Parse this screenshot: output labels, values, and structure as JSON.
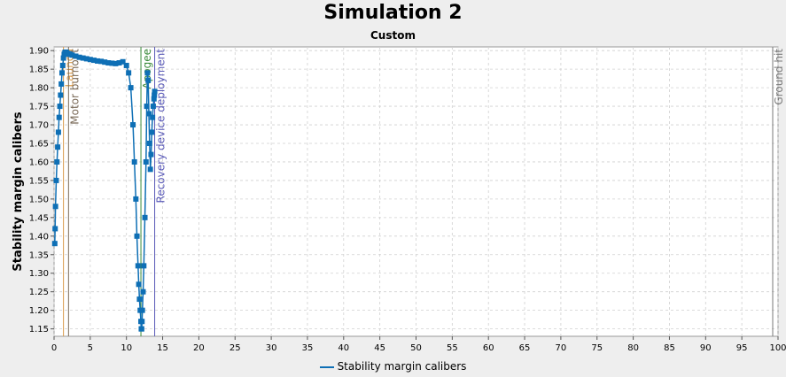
{
  "chart_data": {
    "type": "line",
    "title": "Simulation 2",
    "subtitle": "Custom",
    "xlabel": "",
    "ylabel": "Stability margin calibers",
    "xlim": [
      0,
      100
    ],
    "ylim": [
      1.13,
      1.91
    ],
    "x_ticks": [
      0,
      5,
      10,
      15,
      20,
      25,
      30,
      35,
      40,
      45,
      50,
      55,
      60,
      65,
      70,
      75,
      80,
      85,
      90,
      95,
      100
    ],
    "y_ticks": [
      1.15,
      1.2,
      1.25,
      1.3,
      1.35,
      1.4,
      1.45,
      1.5,
      1.55,
      1.6,
      1.65,
      1.7,
      1.75,
      1.8,
      1.85,
      1.9
    ],
    "grid": true,
    "legend_position": "bottom",
    "colors": {
      "series": "#0e6fb5",
      "background": "#ffffff",
      "grid": "#d0d0d0"
    },
    "series": [
      {
        "name": "Stability margin calibers",
        "x": [
          0.1,
          0.15,
          0.2,
          0.3,
          0.4,
          0.5,
          0.6,
          0.7,
          0.8,
          0.9,
          1.0,
          1.1,
          1.2,
          1.3,
          1.4,
          1.5,
          1.6,
          1.7,
          1.8,
          1.9,
          2.0,
          2.2,
          2.5,
          3.0,
          3.5,
          4.0,
          4.5,
          5.0,
          5.5,
          6.0,
          6.5,
          7.0,
          7.5,
          8.0,
          8.5,
          9.0,
          9.5,
          10.0,
          10.3,
          10.6,
          10.9,
          11.1,
          11.3,
          11.45,
          11.6,
          11.7,
          11.8,
          11.9,
          12.0,
          12.05,
          12.1,
          12.15,
          12.2,
          12.3,
          12.4,
          12.55,
          12.7,
          12.8,
          12.9,
          13.0,
          13.1,
          13.2,
          13.3,
          13.4,
          13.5,
          13.6,
          13.7,
          13.8,
          13.85,
          13.9
        ],
        "y": [
          1.38,
          1.42,
          1.48,
          1.55,
          1.6,
          1.64,
          1.68,
          1.72,
          1.75,
          1.78,
          1.81,
          1.84,
          1.86,
          1.88,
          1.89,
          1.895,
          1.896,
          1.895,
          1.893,
          1.892,
          1.891,
          1.89,
          1.888,
          1.885,
          1.882,
          1.88,
          1.878,
          1.876,
          1.874,
          1.872,
          1.871,
          1.869,
          1.867,
          1.866,
          1.865,
          1.867,
          1.87,
          1.86,
          1.84,
          1.8,
          1.7,
          1.6,
          1.5,
          1.4,
          1.32,
          1.27,
          1.23,
          1.2,
          1.17,
          1.15,
          1.15,
          1.17,
          1.2,
          1.25,
          1.32,
          1.45,
          1.6,
          1.75,
          1.84,
          1.82,
          1.73,
          1.65,
          1.58,
          1.62,
          1.68,
          1.72,
          1.75,
          1.77,
          1.78,
          1.79
        ]
      }
    ],
    "events": [
      {
        "label": "Launch",
        "x": 1.3,
        "color": "#d99a4a"
      },
      {
        "label": "Motor burnout",
        "x": 2.0,
        "color": "#7a6a58"
      },
      {
        "label": "Apogee",
        "x": 12.0,
        "color": "#3a8a3a"
      },
      {
        "label": "Recovery device deployment",
        "x": 13.9,
        "color": "#5a5ab8"
      },
      {
        "label": "Ground hit",
        "x": 100.0,
        "color": "#7a7a7a"
      }
    ]
  }
}
